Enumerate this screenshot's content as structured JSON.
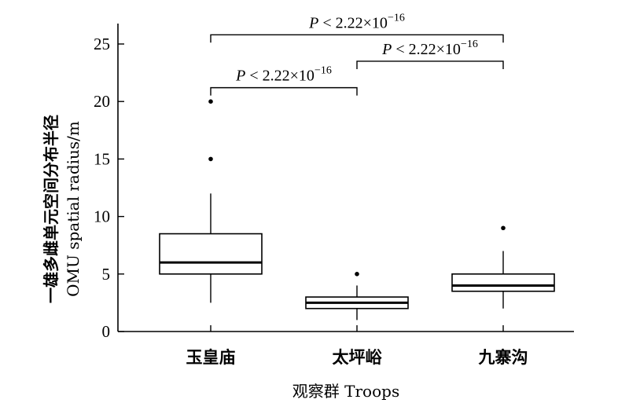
{
  "chart_data": {
    "type": "box",
    "categories": [
      "玉皇庙",
      "太坪峪",
      "九寨沟"
    ],
    "boxes": [
      {
        "name": "玉皇庙",
        "whisker_low": 2.5,
        "q1": 5,
        "median": 6,
        "q3": 8.5,
        "whisker_high": 12,
        "outliers": [
          15,
          20
        ]
      },
      {
        "name": "太坪峪",
        "whisker_low": 1,
        "q1": 2,
        "median": 2.5,
        "q3": 3,
        "whisker_high": 4,
        "outliers": [
          5
        ]
      },
      {
        "name": "九寨沟",
        "whisker_low": 2,
        "q1": 3.5,
        "median": 4,
        "q3": 5,
        "whisker_high": 7,
        "outliers": [
          9
        ]
      }
    ],
    "xlabel": "观察群 Troops",
    "ylabel_cn": "一雄多雌单元空间分布半径",
    "ylabel_en": "OMU spatial radius/m",
    "ylim": [
      0,
      27
    ],
    "yticks": [
      0,
      5,
      10,
      15,
      20,
      25
    ],
    "ytick_labels": [
      "0",
      "5",
      "10",
      "15",
      "20",
      "25"
    ],
    "comparisons": [
      {
        "from": 0,
        "to": 1,
        "y": 21.2,
        "p_symbol": "P",
        "p_text": " < 2.22×10",
        "p_exp": "−16"
      },
      {
        "from": 1,
        "to": 2,
        "y": 23.5,
        "p_symbol": "P",
        "p_text": " < 2.22×10",
        "p_exp": "−16"
      },
      {
        "from": 0,
        "to": 2,
        "y": 25.8,
        "p_symbol": "P",
        "p_text": " < 2.22×10",
        "p_exp": "−16"
      }
    ],
    "grid": false,
    "legend": "none"
  }
}
